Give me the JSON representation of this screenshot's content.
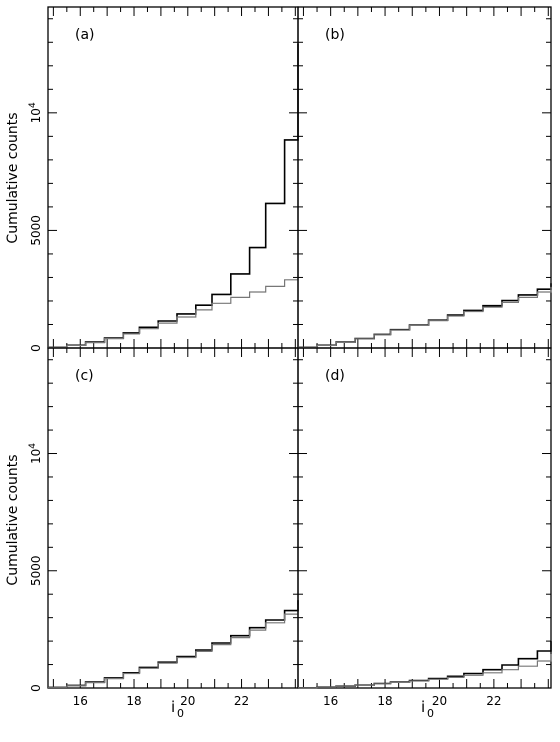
{
  "figure": {
    "ylabel": "Cumulative counts",
    "xlabel_main": "i",
    "xlabel_sub": "0"
  },
  "chart_data": [
    {
      "panel": "(a)",
      "type": "line",
      "step": true,
      "xlim": [
        14.8,
        24.1
      ],
      "ylim": [
        0,
        14500
      ],
      "xticks": [
        16,
        18,
        20,
        22
      ],
      "yticks": [
        0,
        5000,
        10000
      ],
      "ytick_labels": [
        "0",
        "5000",
        "10^4"
      ],
      "series": [
        {
          "color": "#000000",
          "x": [
            14.8,
            15.5,
            16.2,
            16.9,
            17.6,
            18.2,
            18.9,
            19.6,
            20.3,
            20.9,
            21.6,
            22.3,
            22.9,
            23.6,
            24.1
          ],
          "y": [
            30,
            120,
            250,
            420,
            640,
            880,
            1150,
            1450,
            1820,
            2280,
            3150,
            4270,
            6150,
            8850,
            12950
          ]
        },
        {
          "color": "#777777",
          "x": [
            14.8,
            15.5,
            16.2,
            16.9,
            17.6,
            18.2,
            18.9,
            19.6,
            20.3,
            20.9,
            21.6,
            22.3,
            22.9,
            23.6,
            24.1
          ],
          "y": [
            30,
            110,
            230,
            400,
            600,
            820,
            1060,
            1320,
            1620,
            1900,
            2150,
            2380,
            2620,
            2900,
            3100
          ]
        }
      ]
    },
    {
      "panel": "(b)",
      "type": "line",
      "step": true,
      "xlim": [
        14.8,
        24.1
      ],
      "ylim": [
        0,
        14500
      ],
      "xticks": [
        16,
        18,
        20,
        22
      ],
      "yticks": [
        0,
        5000,
        10000
      ],
      "series": [
        {
          "color": "#000000",
          "x": [
            14.8,
            15.5,
            16.2,
            16.9,
            17.6,
            18.2,
            18.9,
            19.6,
            20.3,
            20.9,
            21.6,
            22.3,
            22.9,
            23.6,
            24.1
          ],
          "y": [
            30,
            120,
            250,
            400,
            580,
            780,
            980,
            1180,
            1400,
            1600,
            1800,
            2020,
            2260,
            2500,
            2750
          ]
        },
        {
          "color": "#777777",
          "x": [
            14.8,
            15.5,
            16.2,
            16.9,
            17.6,
            18.2,
            18.9,
            19.6,
            20.3,
            20.9,
            21.6,
            22.3,
            22.9,
            23.6,
            24.1
          ],
          "y": [
            30,
            110,
            240,
            390,
            560,
            760,
            960,
            1160,
            1360,
            1550,
            1740,
            1940,
            2150,
            2380,
            2600
          ]
        }
      ]
    },
    {
      "panel": "(c)",
      "type": "line",
      "step": true,
      "xlim": [
        14.8,
        24.1
      ],
      "ylim": [
        0,
        14500
      ],
      "xticks": [
        16,
        18,
        20,
        22
      ],
      "yticks": [
        0,
        5000,
        10000
      ],
      "ytick_labels": [
        "0",
        "5000",
        "10^4"
      ],
      "series": [
        {
          "color": "#000000",
          "x": [
            14.8,
            15.5,
            16.2,
            16.9,
            17.6,
            18.2,
            18.9,
            19.6,
            20.3,
            20.9,
            21.6,
            22.3,
            22.9,
            23.6,
            24.1
          ],
          "y": [
            30,
            110,
            250,
            430,
            650,
            880,
            1100,
            1340,
            1620,
            1920,
            2230,
            2570,
            2900,
            3300,
            3750
          ]
        },
        {
          "color": "#777777",
          "x": [
            14.8,
            15.5,
            16.2,
            16.9,
            17.6,
            18.2,
            18.9,
            19.6,
            20.3,
            20.9,
            21.6,
            22.3,
            22.9,
            23.6,
            24.1
          ],
          "y": [
            30,
            100,
            230,
            400,
            620,
            840,
            1060,
            1300,
            1560,
            1850,
            2150,
            2470,
            2780,
            3150,
            3550
          ]
        }
      ]
    },
    {
      "panel": "(d)",
      "type": "line",
      "step": true,
      "xlim": [
        14.8,
        24.1
      ],
      "ylim": [
        0,
        14500
      ],
      "xticks": [
        16,
        18,
        20,
        22
      ],
      "yticks": [
        0,
        5000,
        10000
      ],
      "series": [
        {
          "color": "#000000",
          "x": [
            14.8,
            15.5,
            16.2,
            16.9,
            17.6,
            18.2,
            18.9,
            19.6,
            20.3,
            20.9,
            21.6,
            22.3,
            22.9,
            23.6,
            24.1
          ],
          "y": [
            10,
            40,
            80,
            130,
            190,
            250,
            320,
            400,
            500,
            620,
            780,
            980,
            1250,
            1580,
            2000
          ]
        },
        {
          "color": "#777777",
          "x": [
            14.8,
            15.5,
            16.2,
            16.9,
            17.6,
            18.2,
            18.9,
            19.6,
            20.3,
            20.9,
            21.6,
            22.3,
            22.9,
            23.6,
            24.1
          ],
          "y": [
            10,
            40,
            80,
            130,
            180,
            240,
            300,
            370,
            450,
            540,
            650,
            780,
            930,
            1150,
            1450
          ]
        }
      ]
    }
  ]
}
